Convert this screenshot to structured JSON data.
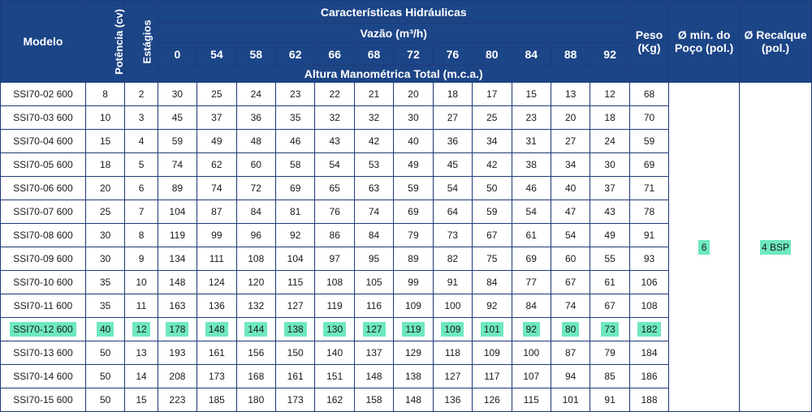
{
  "headers": {
    "modelo": "Modelo",
    "potencia": "Potência (cv)",
    "estagios": "Estágios",
    "caracteristicas": "Características Hidráulicas",
    "vazao": "Vazão (m³/h)",
    "altura": "Altura Manométrica Total (m.c.a.)",
    "peso": "Peso (Kg)",
    "poco": "Ø mín. do Poço (pol.)",
    "recalque": "Ø Recalque (pol.)"
  },
  "flows": [
    "0",
    "54",
    "58",
    "62",
    "66",
    "68",
    "72",
    "76",
    "80",
    "84",
    "88",
    "92"
  ],
  "rows": [
    {
      "modelo": "SSI70-02 600",
      "potencia": "8",
      "estagios": "2",
      "alturas": [
        "30",
        "25",
        "24",
        "23",
        "22",
        "21",
        "20",
        "18",
        "17",
        "15",
        "13",
        "12"
      ],
      "peso": "68"
    },
    {
      "modelo": "SSI70-03 600",
      "potencia": "10",
      "estagios": "3",
      "alturas": [
        "45",
        "37",
        "36",
        "35",
        "32",
        "32",
        "30",
        "27",
        "25",
        "23",
        "20",
        "18"
      ],
      "peso": "70"
    },
    {
      "modelo": "SSI70-04 600",
      "potencia": "15",
      "estagios": "4",
      "alturas": [
        "59",
        "49",
        "48",
        "46",
        "43",
        "42",
        "40",
        "36",
        "34",
        "31",
        "27",
        "24"
      ],
      "peso": "59"
    },
    {
      "modelo": "SSI70-05 600",
      "potencia": "18",
      "estagios": "5",
      "alturas": [
        "74",
        "62",
        "60",
        "58",
        "54",
        "53",
        "49",
        "45",
        "42",
        "38",
        "34",
        "30"
      ],
      "peso": "69"
    },
    {
      "modelo": "SSI70-06 600",
      "potencia": "20",
      "estagios": "6",
      "alturas": [
        "89",
        "74",
        "72",
        "69",
        "65",
        "63",
        "59",
        "54",
        "50",
        "46",
        "40",
        "37"
      ],
      "peso": "71"
    },
    {
      "modelo": "SSI70-07 600",
      "potencia": "25",
      "estagios": "7",
      "alturas": [
        "104",
        "87",
        "84",
        "81",
        "76",
        "74",
        "69",
        "64",
        "59",
        "54",
        "47",
        "43"
      ],
      "peso": "78"
    },
    {
      "modelo": "SSI70-08 600",
      "potencia": "30",
      "estagios": "8",
      "alturas": [
        "119",
        "99",
        "96",
        "92",
        "86",
        "84",
        "79",
        "73",
        "67",
        "61",
        "54",
        "49"
      ],
      "peso": "91"
    },
    {
      "modelo": "SSI70-09 600",
      "potencia": "30",
      "estagios": "9",
      "alturas": [
        "134",
        "111",
        "108",
        "104",
        "97",
        "95",
        "89",
        "82",
        "75",
        "69",
        "60",
        "55"
      ],
      "peso": "93"
    },
    {
      "modelo": "SSI70-10 600",
      "potencia": "35",
      "estagios": "10",
      "alturas": [
        "148",
        "124",
        "120",
        "115",
        "108",
        "105",
        "99",
        "91",
        "84",
        "77",
        "67",
        "61"
      ],
      "peso": "106"
    },
    {
      "modelo": "SSI70-11 600",
      "potencia": "35",
      "estagios": "11",
      "alturas": [
        "163",
        "136",
        "132",
        "127",
        "119",
        "116",
        "109",
        "100",
        "92",
        "84",
        "74",
        "67"
      ],
      "peso": "108"
    },
    {
      "modelo": "SSI70-12 600",
      "potencia": "40",
      "estagios": "12",
      "alturas": [
        "178",
        "148",
        "144",
        "138",
        "130",
        "127",
        "119",
        "109",
        "101",
        "92",
        "80",
        "73"
      ],
      "peso": "182",
      "highlight": true
    },
    {
      "modelo": "SSI70-13 600",
      "potencia": "50",
      "estagios": "13",
      "alturas": [
        "193",
        "161",
        "156",
        "150",
        "140",
        "137",
        "129",
        "118",
        "109",
        "100",
        "87",
        "79"
      ],
      "peso": "184"
    },
    {
      "modelo": "SSI70-14 600",
      "potencia": "50",
      "estagios": "14",
      "alturas": [
        "208",
        "173",
        "168",
        "161",
        "151",
        "148",
        "138",
        "127",
        "117",
        "107",
        "94",
        "85"
      ],
      "peso": "186"
    },
    {
      "modelo": "SSI70-15 600",
      "potencia": "50",
      "estagios": "15",
      "alturas": [
        "223",
        "185",
        "180",
        "173",
        "162",
        "158",
        "148",
        "136",
        "126",
        "115",
        "101",
        "91"
      ],
      "peso": "188"
    }
  ],
  "poco_value": "6",
  "recalque_value": "4 BSP",
  "colors": {
    "header_bg": "#1c4587",
    "highlight": "#6ee8bf"
  }
}
